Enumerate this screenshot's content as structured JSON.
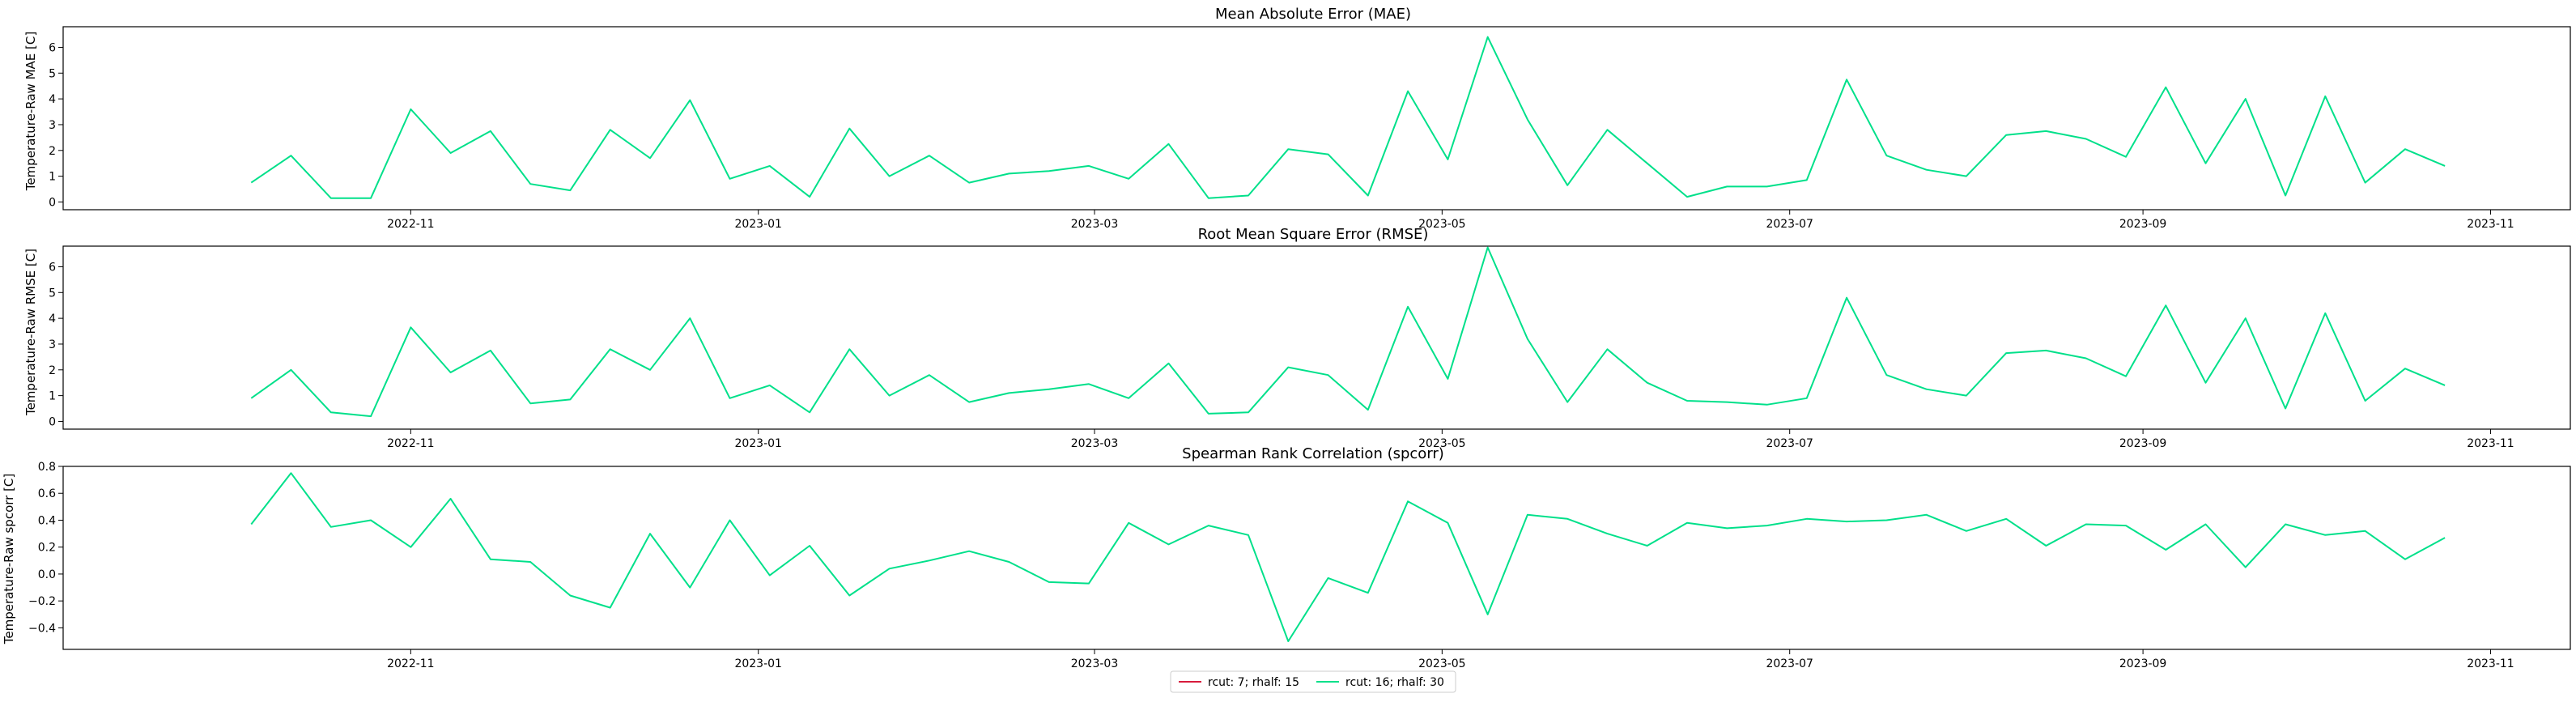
{
  "chart_data": [
    {
      "type": "line",
      "title": "Mean Absolute Error (MAE)",
      "ylabel": "Temperature-Raw MAE [C]",
      "ylim": [
        -0.3,
        6.8
      ],
      "yticks": [
        0,
        1,
        2,
        3,
        4,
        5,
        6
      ],
      "xticks": [
        "2022-11",
        "2023-01",
        "2023-03",
        "2023-05",
        "2023-07",
        "2023-09",
        "2023-11"
      ],
      "series": [
        {
          "name": "rcut: 16; rhalf: 30",
          "color": "#00e08a",
          "x": [
            "2022-10-04",
            "2022-10-11",
            "2022-10-18",
            "2022-10-25",
            "2022-11-01",
            "2022-11-08",
            "2022-11-15",
            "2022-11-22",
            "2022-11-29",
            "2022-12-06",
            "2022-12-13",
            "2022-12-20",
            "2022-12-27",
            "2023-01-03",
            "2023-01-10",
            "2023-01-17",
            "2023-01-24",
            "2023-01-31",
            "2023-02-07",
            "2023-02-14",
            "2023-02-21",
            "2023-02-28",
            "2023-03-07",
            "2023-03-14",
            "2023-03-21",
            "2023-03-28",
            "2023-04-04",
            "2023-04-11",
            "2023-04-18",
            "2023-04-25",
            "2023-05-02",
            "2023-05-09",
            "2023-05-16",
            "2023-05-23",
            "2023-05-30",
            "2023-06-06",
            "2023-06-13",
            "2023-06-20",
            "2023-06-27",
            "2023-07-04",
            "2023-07-11",
            "2023-07-18",
            "2023-07-25",
            "2023-08-01",
            "2023-08-08",
            "2023-08-15",
            "2023-08-22",
            "2023-08-29",
            "2023-09-05",
            "2023-09-12",
            "2023-09-19",
            "2023-09-26",
            "2023-10-03",
            "2023-10-10",
            "2023-10-17",
            "2023-10-24"
          ],
          "y": [
            0.75,
            1.8,
            0.15,
            0.15,
            3.6,
            1.9,
            2.75,
            0.7,
            0.45,
            2.8,
            1.7,
            3.95,
            0.9,
            1.4,
            0.2,
            2.85,
            1.0,
            1.8,
            0.75,
            1.1,
            1.2,
            1.4,
            0.9,
            2.25,
            0.15,
            0.25,
            2.05,
            1.85,
            0.25,
            4.3,
            1.65,
            6.4,
            3.2,
            0.65,
            2.8,
            1.5,
            0.2,
            0.6,
            0.6,
            0.85,
            4.75,
            1.8,
            1.25,
            1.0,
            2.6,
            2.75,
            2.45,
            1.75,
            4.45,
            1.5,
            4.0,
            0.25,
            4.1,
            0.75,
            2.05,
            1.4
          ]
        }
      ]
    },
    {
      "type": "line",
      "title": "Root Mean Square Error (RMSE)",
      "ylabel": "Temperature-Raw RMSE [C]",
      "ylim": [
        -0.3,
        6.8
      ],
      "yticks": [
        0,
        1,
        2,
        3,
        4,
        5,
        6
      ],
      "xticks": [
        "2022-11",
        "2023-01",
        "2023-03",
        "2023-05",
        "2023-07",
        "2023-09",
        "2023-11"
      ],
      "series": [
        {
          "name": "rcut: 16; rhalf: 30",
          "color": "#00e08a",
          "x": [
            "2022-10-04",
            "2022-10-11",
            "2022-10-18",
            "2022-10-25",
            "2022-11-01",
            "2022-11-08",
            "2022-11-15",
            "2022-11-22",
            "2022-11-29",
            "2022-12-06",
            "2022-12-13",
            "2022-12-20",
            "2022-12-27",
            "2023-01-03",
            "2023-01-10",
            "2023-01-17",
            "2023-01-24",
            "2023-01-31",
            "2023-02-07",
            "2023-02-14",
            "2023-02-21",
            "2023-02-28",
            "2023-03-07",
            "2023-03-14",
            "2023-03-21",
            "2023-03-28",
            "2023-04-04",
            "2023-04-11",
            "2023-04-18",
            "2023-04-25",
            "2023-05-02",
            "2023-05-09",
            "2023-05-16",
            "2023-05-23",
            "2023-05-30",
            "2023-06-06",
            "2023-06-13",
            "2023-06-20",
            "2023-06-27",
            "2023-07-04",
            "2023-07-11",
            "2023-07-18",
            "2023-07-25",
            "2023-08-01",
            "2023-08-08",
            "2023-08-15",
            "2023-08-22",
            "2023-08-29",
            "2023-09-05",
            "2023-09-12",
            "2023-09-19",
            "2023-09-26",
            "2023-10-03",
            "2023-10-10",
            "2023-10-17",
            "2023-10-24"
          ],
          "y": [
            0.9,
            2.0,
            0.35,
            0.2,
            3.65,
            1.9,
            2.75,
            0.7,
            0.85,
            2.8,
            2.0,
            4.0,
            0.9,
            1.4,
            0.35,
            2.8,
            1.0,
            1.8,
            0.75,
            1.1,
            1.25,
            1.45,
            0.9,
            2.25,
            0.3,
            0.35,
            2.1,
            1.8,
            0.45,
            4.45,
            1.65,
            6.75,
            3.2,
            0.75,
            2.8,
            1.5,
            0.8,
            0.75,
            0.65,
            0.9,
            4.8,
            1.8,
            1.25,
            1.0,
            2.65,
            2.75,
            2.45,
            1.75,
            4.5,
            1.5,
            4.0,
            0.5,
            4.2,
            0.8,
            2.05,
            1.4
          ]
        }
      ]
    },
    {
      "type": "line",
      "title": "Spearman Rank Correlation (spcorr)",
      "ylabel": "Temperature-Raw spcorr [C]",
      "ylim": [
        -0.56,
        0.8
      ],
      "yticks": [
        -0.4,
        -0.2,
        0.0,
        0.2,
        0.4,
        0.6,
        0.8
      ],
      "ytick_labels": [
        "−0.4",
        "−0.2",
        "0.0",
        "0.2",
        "0.4",
        "0.6",
        "0.8"
      ],
      "xticks": [
        "2022-11",
        "2023-01",
        "2023-03",
        "2023-05",
        "2023-07",
        "2023-09",
        "2023-11"
      ],
      "series": [
        {
          "name": "rcut: 16; rhalf: 30",
          "color": "#00e08a",
          "x": [
            "2022-10-04",
            "2022-10-11",
            "2022-10-18",
            "2022-10-25",
            "2022-11-01",
            "2022-11-08",
            "2022-11-15",
            "2022-11-22",
            "2022-11-29",
            "2022-12-06",
            "2022-12-13",
            "2022-12-20",
            "2022-12-27",
            "2023-01-03",
            "2023-01-10",
            "2023-01-17",
            "2023-01-24",
            "2023-01-31",
            "2023-02-07",
            "2023-02-14",
            "2023-02-21",
            "2023-02-28",
            "2023-03-07",
            "2023-03-14",
            "2023-03-21",
            "2023-03-28",
            "2023-04-04",
            "2023-04-11",
            "2023-04-18",
            "2023-04-25",
            "2023-05-02",
            "2023-05-09",
            "2023-05-16",
            "2023-05-23",
            "2023-05-30",
            "2023-06-06",
            "2023-06-13",
            "2023-06-20",
            "2023-06-27",
            "2023-07-04",
            "2023-07-11",
            "2023-07-18",
            "2023-07-25",
            "2023-08-01",
            "2023-08-08",
            "2023-08-15",
            "2023-08-22",
            "2023-08-29",
            "2023-09-05",
            "2023-09-12",
            "2023-09-19",
            "2023-09-26",
            "2023-10-03",
            "2023-10-10",
            "2023-10-17",
            "2023-10-24"
          ],
          "y": [
            0.37,
            0.75,
            0.35,
            0.4,
            0.2,
            0.56,
            0.11,
            0.09,
            -0.16,
            -0.25,
            0.3,
            -0.1,
            0.4,
            -0.01,
            0.21,
            -0.16,
            0.04,
            0.1,
            0.17,
            0.09,
            -0.06,
            -0.07,
            0.38,
            0.22,
            0.36,
            0.29,
            -0.5,
            -0.03,
            -0.14,
            0.54,
            0.38,
            -0.3,
            0.44,
            0.41,
            0.3,
            0.21,
            0.38,
            0.34,
            0.36,
            0.41,
            0.39,
            0.4,
            0.44,
            0.32,
            0.41,
            0.21,
            0.37,
            0.36,
            0.18,
            0.37,
            0.05,
            0.37,
            0.29,
            0.32,
            0.11,
            0.27
          ]
        }
      ]
    }
  ],
  "legend": {
    "placement": "bottom-center",
    "entries": [
      {
        "label": "rcut: 7; rhalf: 15",
        "color": "#d81b3c"
      },
      {
        "label": "rcut: 16; rhalf: 30",
        "color": "#00e08a"
      }
    ]
  }
}
